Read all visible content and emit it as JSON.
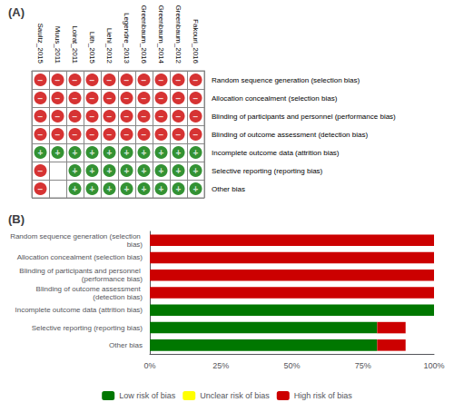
{
  "chart_data": [
    {
      "type": "heatmap",
      "title": "(A)",
      "x": [
        "Saultz_2015",
        "Muus_2011",
        "Loirat_2011",
        "Lith_2015",
        "Liehl_2012",
        "Legendre_2013",
        "Greenbaum_2016",
        "Greenbaum_2014",
        "Greenbaum_2012",
        "Fakouri_2016"
      ],
      "y": [
        "Random sequence generation (selection bias)",
        "Allocation concealment (selection bias)",
        "Blinding of participants and personnel (performance bias)",
        "Blinding of outcome assessment (detection bias)",
        "Incomplete outcome data (attrition bias)",
        "Selective reporting (reporting bias)",
        "Other bias"
      ],
      "cells": [
        [
          "−",
          "−",
          "−",
          "−",
          "−",
          "−",
          "−",
          "−",
          "−",
          "−"
        ],
        [
          "−",
          "−",
          "−",
          "−",
          "−",
          "−",
          "−",
          "−",
          "−",
          "−"
        ],
        [
          "−",
          "−",
          "−",
          "−",
          "−",
          "−",
          "−",
          "−",
          "−",
          "−"
        ],
        [
          "−",
          "−",
          "−",
          "−",
          "−",
          "−",
          "−",
          "−",
          "−",
          "−"
        ],
        [
          "+",
          "+",
          "+",
          "+",
          "+",
          "+",
          "+",
          "+",
          "+",
          "+"
        ],
        [
          "−",
          null,
          "+",
          "+",
          "+",
          "+",
          "+",
          "+",
          "+",
          "+"
        ],
        [
          "−",
          null,
          "+",
          "+",
          "+",
          "+",
          "+",
          "+",
          "+",
          "+"
        ]
      ],
      "colors": [
        [
          "#cc0000",
          "#cc0000",
          "#cc0000",
          "#cc0000",
          "#cc0000",
          "#cc0000",
          "#cc0000",
          "#cc0000",
          "#cc0000",
          "#cc0000"
        ],
        [
          "#cc0000",
          "#cc0000",
          "#cc0000",
          "#cc0000",
          "#cc0000",
          "#cc0000",
          "#cc0000",
          "#cc0000",
          "#cc0000",
          "#cc0000"
        ],
        [
          "#cc0000",
          "#cc0000",
          "#cc0000",
          "#cc0000",
          "#cc0000",
          "#cc0000",
          "#cc0000",
          "#cc0000",
          "#cc0000",
          "#cc0000"
        ],
        [
          "#cc0000",
          "#cc0000",
          "#cc0000",
          "#cc0000",
          "#cc0000",
          "#cc0000",
          "#cc0000",
          "#cc0000",
          "#cc0000",
          "#cc0000"
        ],
        [
          "#007700",
          "#007700",
          "#007700",
          "#007700",
          "#007700",
          "#007700",
          "#007700",
          "#007700",
          "#007700",
          "#007700"
        ],
        [
          "#cc0000",
          null,
          "#007700",
          "#007700",
          "#007700",
          "#007700",
          "#007700",
          "#007700",
          "#007700",
          "#007700"
        ],
        [
          "#cc0000",
          null,
          "#007700",
          "#007700",
          "#007700",
          "#007700",
          "#007700",
          "#007700",
          "#007700",
          "#007700"
        ]
      ]
    },
    {
      "type": "bar",
      "title": "(B)",
      "orientation": "horizontal",
      "stacked": true,
      "categories": [
        "Random sequence generation (selection bias)",
        "Allocation concealment (selection bias)",
        "Blinding of participants and personnel (performance bias)",
        "Blinding of outcome assessment (detection bias)",
        "Incomplete outcome data (attrition bias)",
        "Selective reporting (reporting bias)",
        "Other bias"
      ],
      "series": [
        {
          "name": "Low risk of bias",
          "color": "#007700",
          "values": [
            0,
            0,
            0,
            0,
            100,
            80,
            80
          ]
        },
        {
          "name": "Unclear risk of bias",
          "color": "#ffff00",
          "values": [
            0,
            0,
            0,
            0,
            0,
            0,
            0
          ]
        },
        {
          "name": "High risk of bias",
          "color": "#cc0000",
          "values": [
            100,
            100,
            100,
            100,
            0,
            10,
            10
          ]
        }
      ],
      "xlim": [
        0,
        100
      ],
      "xticks": [
        {
          "value": 0,
          "label": "0%"
        },
        {
          "value": 25,
          "label": "25%"
        },
        {
          "value": 50,
          "label": "50%"
        },
        {
          "value": 75,
          "label": "75%"
        },
        {
          "value": 100,
          "label": "100%"
        }
      ],
      "grid": false,
      "legend": "bottom"
    }
  ]
}
